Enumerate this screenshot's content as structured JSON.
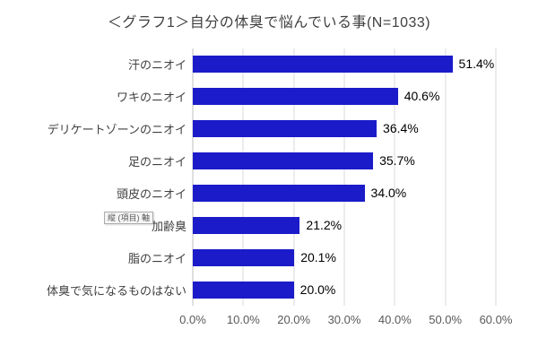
{
  "title": "＜グラフ1＞自分の体臭で悩んでいる事(N=1033)",
  "axis_tooltip": {
    "label": "縦 (項目) 軸"
  },
  "chart_data": {
    "type": "bar",
    "orientation": "horizontal",
    "title": "＜グラフ1＞自分の体臭で悩んでいる事(N=1033)",
    "categories": [
      "汗のニオイ",
      "ワキのニオイ",
      "デリケートゾーンのニオイ",
      "足のニオイ",
      "頭皮のニオイ",
      "加齢臭",
      "脂のニオイ",
      "体臭で気になるものはない"
    ],
    "values": [
      51.4,
      40.6,
      36.4,
      35.7,
      34.0,
      21.2,
      20.1,
      20.0
    ],
    "value_labels": [
      "51.4%",
      "40.6%",
      "36.4%",
      "35.7%",
      "34.0%",
      "21.2%",
      "20.1%",
      "20.0%"
    ],
    "x_ticks": [
      "0.0%",
      "10.0%",
      "20.0%",
      "30.0%",
      "40.0%",
      "50.0%",
      "60.0%"
    ],
    "xlim": [
      0,
      60
    ],
    "grid": true,
    "bar_color": "#1b1bc9",
    "gridline_color": "#d9d9d9"
  }
}
